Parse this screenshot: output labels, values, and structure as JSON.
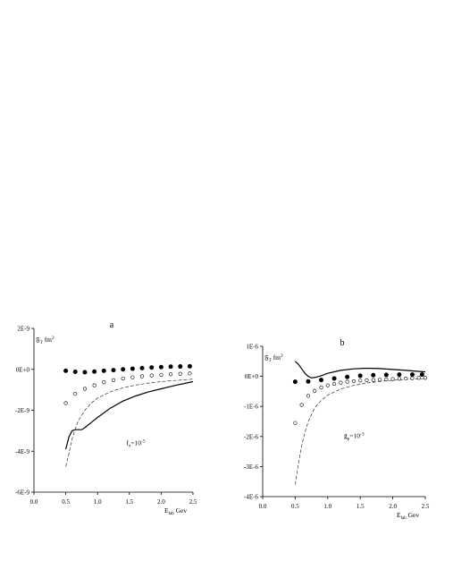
{
  "chart_data": [
    {
      "type": "line",
      "panel_label": "a",
      "ylabel_main": "𝔉",
      "ylabel_sub": "T",
      "ylabel_unit": "fm",
      "ylabel_sup": "2",
      "xlabel_main": "E",
      "xlabel_sub": "lab",
      "xlabel_unit": "Gev",
      "xlim": [
        0.0,
        2.5
      ],
      "ylim": [
        -6e-09,
        2e-09
      ],
      "x_ticks": [
        0.0,
        0.5,
        1.0,
        1.5,
        2.0,
        2.5
      ],
      "x_tick_labels": [
        "0.0",
        "0.5",
        "1.0",
        "1.5",
        "2.0",
        "2.5"
      ],
      "y_ticks": [
        2e-09,
        0,
        -2e-09,
        -4e-09,
        -6e-09
      ],
      "y_tick_labels": [
        "2E-9",
        "0E+0",
        "-2E-9",
        "-4E-9",
        "-6E-9"
      ],
      "annotation_main": "f",
      "annotation_sub": "π",
      "annotation_mid": "=10",
      "annotation_sup": "-5",
      "annotation_at": [
        1.45,
        -3.7e-09
      ],
      "series": [
        {
          "style": "solid",
          "x": [
            0.5,
            0.55,
            0.6,
            0.65,
            0.7,
            0.75,
            0.8,
            0.9,
            1.0,
            1.2,
            1.4,
            1.6,
            1.8,
            2.0,
            2.2,
            2.5
          ],
          "values": [
            -3.9e-09,
            -3.3e-09,
            -3e-09,
            -2.95e-09,
            -2.95e-09,
            -2.95e-09,
            -2.85e-09,
            -2.6e-09,
            -2.35e-09,
            -1.9e-09,
            -1.55e-09,
            -1.3e-09,
            -1.1e-09,
            -9.5e-10,
            -8e-10,
            -6e-10
          ]
        },
        {
          "style": "dashed",
          "x": [
            0.5,
            0.55,
            0.6,
            0.65,
            0.7,
            0.8,
            0.9,
            1.0,
            1.2,
            1.4,
            1.6,
            1.8,
            2.0,
            2.2,
            2.5
          ],
          "values": [
            -4.75e-09,
            -4.1e-09,
            -3.4e-09,
            -2.9e-09,
            -2.5e-09,
            -2e-09,
            -1.65e-09,
            -1.4e-09,
            -1.1e-09,
            -9e-10,
            -7.7e-10,
            -6.7e-10,
            -6e-10,
            -5.5e-10,
            -4.8e-10
          ]
        },
        {
          "style": "filled-circles",
          "x": [
            0.5,
            0.65,
            0.8,
            0.95,
            1.1,
            1.25,
            1.4,
            1.55,
            1.7,
            1.85,
            2.0,
            2.15,
            2.3,
            2.45
          ],
          "values": [
            -7e-11,
            -1.2e-10,
            -1.4e-10,
            -1.1e-10,
            -7e-11,
            -4e-11,
            0.0,
            3e-11,
            6e-11,
            9e-11,
            1.1e-10,
            1.3e-10,
            1.4e-10,
            1.5e-10
          ]
        },
        {
          "style": "open-circles",
          "x": [
            0.5,
            0.65,
            0.8,
            0.95,
            1.1,
            1.25,
            1.4,
            1.55,
            1.7,
            1.85,
            2.0,
            2.15,
            2.3,
            2.45
          ],
          "values": [
            -1.65e-09,
            -1.2e-09,
            -9.5e-10,
            -7.8e-10,
            -6.3e-10,
            -5.3e-10,
            -4.5e-10,
            -3.9e-10,
            -3.4e-10,
            -3e-10,
            -2.7e-10,
            -2.4e-10,
            -2.2e-10,
            -2e-10
          ]
        }
      ]
    },
    {
      "type": "line",
      "panel_label": "b",
      "ylabel_main": "𝔉",
      "ylabel_sub": "T",
      "ylabel_unit": "fm",
      "ylabel_sup": "2",
      "xlabel_main": "E",
      "xlabel_sub": "lab",
      "xlabel_unit": "Gev",
      "xlim": [
        0.0,
        2.5
      ],
      "ylim": [
        -4e-06,
        1e-06
      ],
      "x_ticks": [
        0.0,
        0.5,
        1.0,
        1.5,
        2.0,
        2.5
      ],
      "x_tick_labels": [
        "0.0",
        "0.5",
        "1.0",
        "1.5",
        "2.0",
        "2.5"
      ],
      "y_ticks": [
        1e-06,
        0,
        -1e-06,
        -2e-06,
        -3e-06,
        -4e-06
      ],
      "y_tick_labels": [
        "1E-6",
        "0E+0",
        "-1E-6",
        "-2E-6",
        "-3E-6",
        "-4E-6"
      ],
      "annotation_main": "ḡ",
      "annotation_sub": "ρ",
      "annotation_mid": "=10",
      "annotation_sup": "-3",
      "annotation_at": [
        1.25,
        -2.05e-06
      ],
      "series": [
        {
          "style": "solid",
          "x": [
            0.5,
            0.55,
            0.6,
            0.65,
            0.7,
            0.75,
            0.8,
            0.9,
            1.0,
            1.2,
            1.4,
            1.6,
            1.8,
            2.0,
            2.2,
            2.5
          ],
          "values": [
            5e-07,
            4e-07,
            2.5e-07,
            1e-07,
            0.0,
            -5e-08,
            -4e-08,
            2e-08,
            1e-07,
            2e-07,
            2.5e-07,
            2.7e-07,
            2.6e-07,
            2.3e-07,
            2e-07,
            1.5e-07
          ]
        },
        {
          "style": "dashed",
          "x": [
            0.5,
            0.55,
            0.6,
            0.65,
            0.7,
            0.8,
            0.9,
            1.0,
            1.2,
            1.4,
            1.6,
            1.8,
            2.0,
            2.2,
            2.5
          ],
          "values": [
            -3.6e-06,
            -2.9e-06,
            -2.3e-06,
            -1.85e-06,
            -1.5e-06,
            -1.05e-06,
            -8e-07,
            -6.2e-07,
            -4.2e-07,
            -3e-07,
            -2.2e-07,
            -1.7e-07,
            -1.3e-07,
            -1e-07,
            -7e-08
          ]
        },
        {
          "style": "filled-circles",
          "x": [
            0.5,
            0.7,
            0.9,
            1.1,
            1.3,
            1.5,
            1.7,
            1.9,
            2.1,
            2.3,
            2.45
          ],
          "values": [
            -1.8e-07,
            -1.7e-07,
            -1.2e-07,
            -7e-08,
            -2e-08,
            2e-08,
            4e-08,
            5e-08,
            6e-08,
            6e-08,
            6e-08
          ]
        },
        {
          "style": "open-circles",
          "x": [
            0.5,
            0.6,
            0.7,
            0.8,
            0.9,
            1.0,
            1.1,
            1.2,
            1.3,
            1.4,
            1.5,
            1.6,
            1.7,
            1.8,
            1.9,
            2.0,
            2.1,
            2.2,
            2.3,
            2.4,
            2.5
          ],
          "values": [
            -1.55e-06,
            -9.5e-07,
            -6.5e-07,
            -4.8e-07,
            -3.7e-07,
            -3e-07,
            -2.5e-07,
            -2.1e-07,
            -1.8e-07,
            -1.6e-07,
            -1.4e-07,
            -1.3e-07,
            -1.2e-07,
            -1.1e-07,
            -1e-07,
            -9e-08,
            -8e-08,
            -7e-08,
            -6e-08,
            -5e-08,
            -5e-08
          ]
        }
      ]
    }
  ]
}
